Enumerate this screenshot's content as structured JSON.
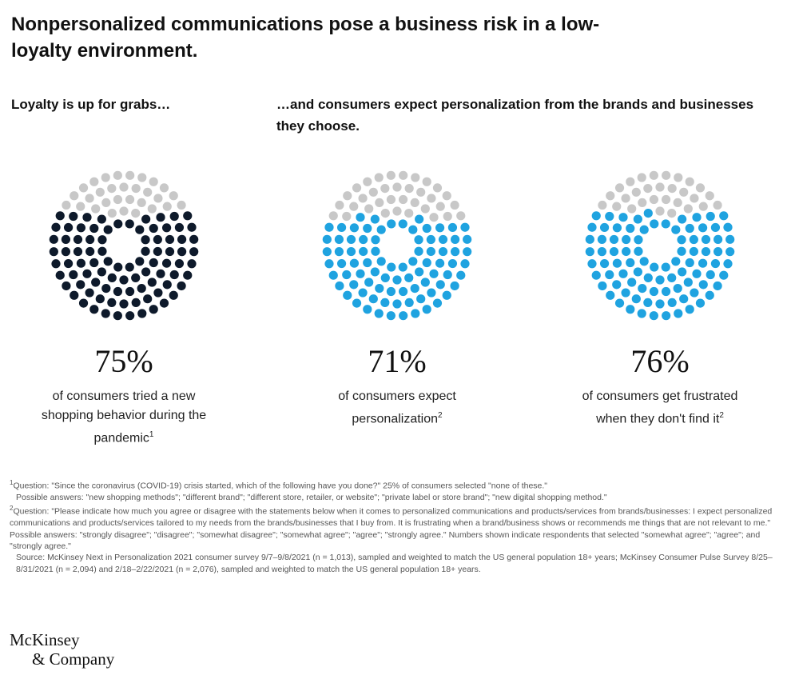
{
  "title": "Nonpersonalized communications pose a business risk in a low-loyalty environment.",
  "subheads": {
    "left": "Loyalty is up for grabs…",
    "right": "…and consumers expect personalization from the brands and businesses they choose."
  },
  "colors": {
    "empty_dot": "#c8c8c8",
    "dark_dot": "#0e1a2b",
    "blue_dot": "#1fa3e0"
  },
  "chart_data": [
    {
      "type": "dot-fill",
      "value_percent": 75,
      "label": "75%",
      "description": "of consumers tried a new shopping behavior during the pandemic",
      "footnote_ref": "1",
      "color": "#0e1a2b"
    },
    {
      "type": "dot-fill",
      "value_percent": 71,
      "label": "71%",
      "description": "of consumers expect personalization",
      "footnote_ref": "2",
      "color": "#1fa3e0"
    },
    {
      "type": "dot-fill",
      "value_percent": 76,
      "label": "76%",
      "description": "of consumers get frustrated when they don't find it",
      "footnote_ref": "2",
      "color": "#1fa3e0"
    }
  ],
  "footnotes": {
    "n1_mark": "1",
    "n1_line1": "Question: \"Since the coronavirus (COVID-19) crisis started, which of the following have you done?\" 25% of consumers selected \"none of these.\"",
    "n1_line2": "Possible answers: \"new shopping methods\"; \"different brand\"; \"different store, retailer, or website\"; \"private label or store brand\"; \"new digital shopping method.\"",
    "n2_mark": "2",
    "n2_text": "Question: \"Please indicate how much you agree or disagree with the statements below when it comes to personalized communications and products/services from brands/businesses: I expect personalized communications and products/services tailored to my needs from the brands/businesses that I buy from. It is frustrating when a brand/business shows or recommends me things that are not relevant to me.\" Possible answers: \"strongly disagree\"; \"disagree\"; \"somewhat disagree\"; \"somewhat agree\"; \"agree\"; \"strongly agree.\" Numbers shown indicate respondents that selected \"somewhat agree\"; \"agree\"; and \"strongly agree.\"",
    "source": "Source: McKinsey Next in Personalization 2021 consumer survey 9/7–9/8/2021 (n = 1,013), sampled and weighted to match the US general population 18+ years; McKinsey Consumer Pulse Survey 8/25–8/31/2021 (n = 2,094) and 2/18–2/22/2021 (n = 2,076), sampled and weighted to match the US general population 18+ years."
  },
  "logo": {
    "line1": "McKinsey",
    "line2": "& Company"
  }
}
